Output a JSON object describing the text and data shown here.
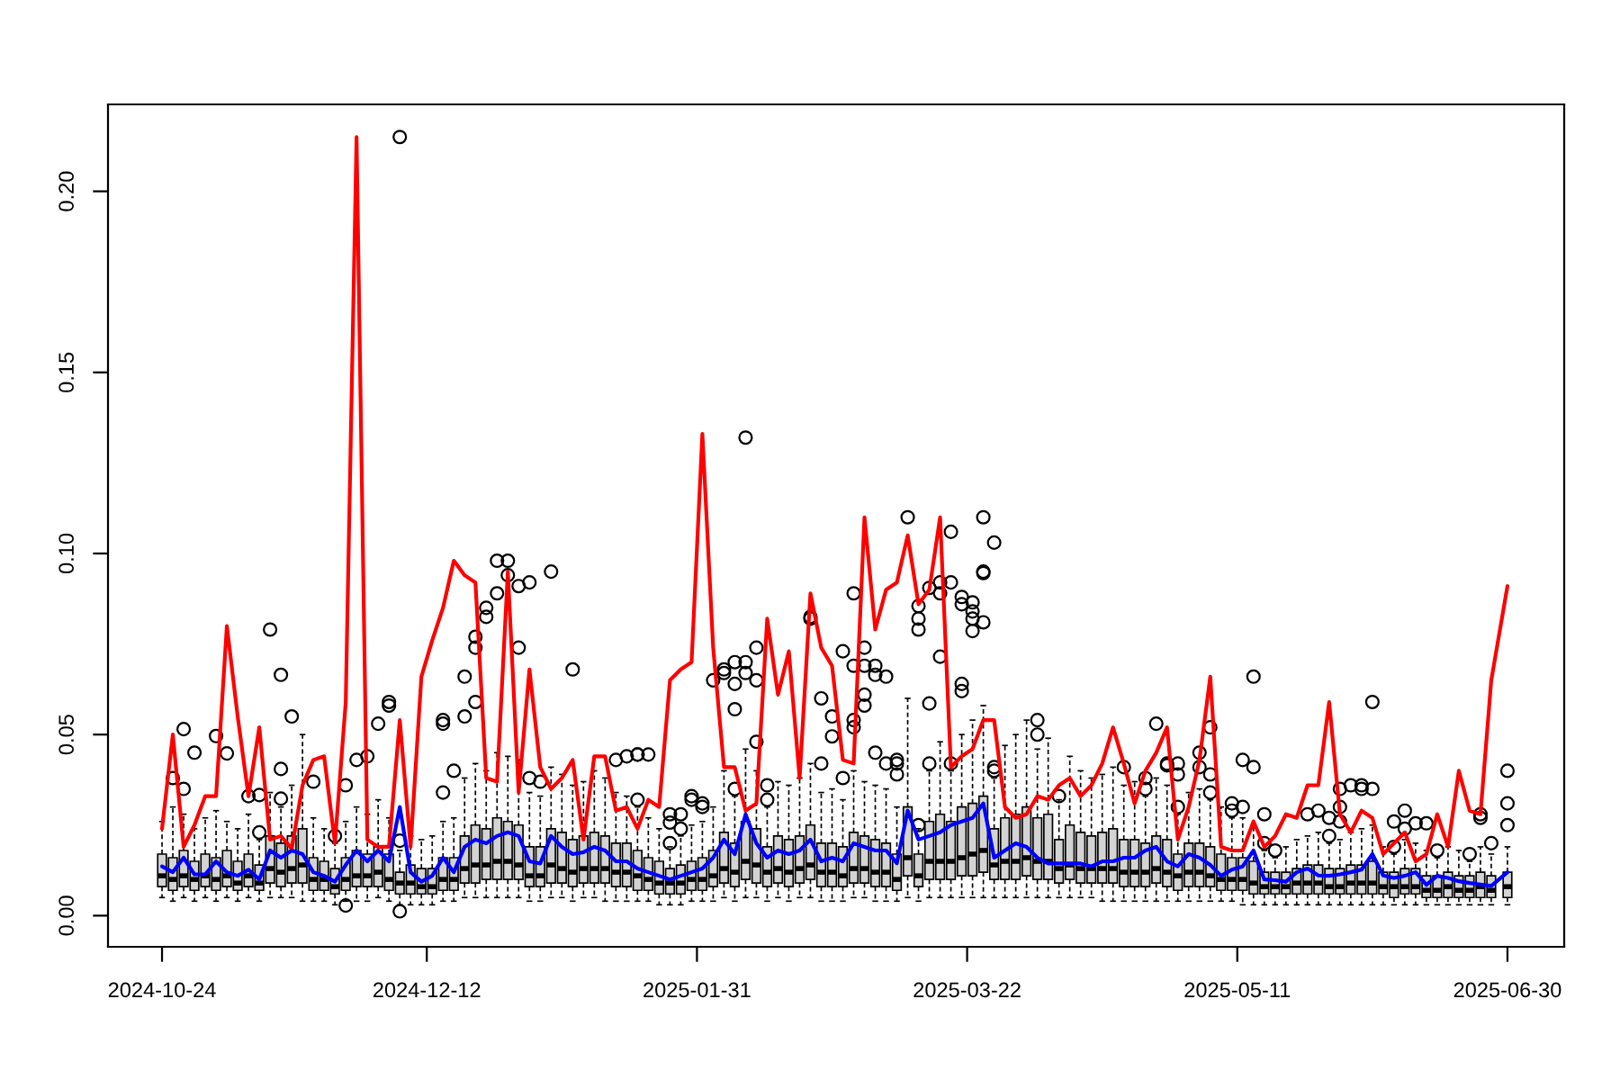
{
  "chart_data": {
    "type": "box",
    "color": "#d3d3d3",
    "x": [
      "2024-10-24",
      "2024-10-26",
      "2024-10-28",
      "2024-10-30",
      "2024-11-01",
      "2024-11-03",
      "2024-11-05",
      "2024-11-07",
      "2024-11-09",
      "2024-11-11",
      "2024-11-13",
      "2024-11-15",
      "2024-11-17",
      "2024-11-19",
      "2024-11-21",
      "2024-11-23",
      "2024-11-25",
      "2024-11-27",
      "2024-11-29",
      "2024-12-01",
      "2024-12-03",
      "2024-12-05",
      "2024-12-07",
      "2024-12-09",
      "2024-12-11",
      "2024-12-13",
      "2024-12-15",
      "2024-12-17",
      "2024-12-19",
      "2024-12-21",
      "2024-12-23",
      "2024-12-25",
      "2024-12-27",
      "2024-12-29",
      "2024-12-31",
      "2025-01-02",
      "2025-01-04",
      "2025-01-06",
      "2025-01-08",
      "2025-01-10",
      "2025-01-12",
      "2025-01-14",
      "2025-01-16",
      "2025-01-18",
      "2025-01-20",
      "2025-01-22",
      "2025-01-24",
      "2025-01-26",
      "2025-01-28",
      "2025-01-30",
      "2025-02-01",
      "2025-02-03",
      "2025-02-05",
      "2025-02-07",
      "2025-02-09",
      "2025-02-11",
      "2025-02-13",
      "2025-02-15",
      "2025-02-17",
      "2025-02-19",
      "2025-02-21",
      "2025-02-23",
      "2025-02-25",
      "2025-02-27",
      "2025-03-01",
      "2025-03-03",
      "2025-03-05",
      "2025-03-07",
      "2025-03-09",
      "2025-03-11",
      "2025-03-13",
      "2025-03-15",
      "2025-03-17",
      "2025-03-19",
      "2025-03-21",
      "2025-03-23",
      "2025-03-25",
      "2025-03-27",
      "2025-03-29",
      "2025-03-31",
      "2025-04-02",
      "2025-04-04",
      "2025-04-06",
      "2025-04-08",
      "2025-04-10",
      "2025-04-12",
      "2025-04-14",
      "2025-04-16",
      "2025-04-18",
      "2025-04-20",
      "2025-04-22",
      "2025-04-24",
      "2025-04-26",
      "2025-04-28",
      "2025-04-30",
      "2025-05-02",
      "2025-05-04",
      "2025-05-06",
      "2025-05-08",
      "2025-05-10",
      "2025-05-12",
      "2025-05-14",
      "2025-05-16",
      "2025-05-18",
      "2025-05-20",
      "2025-05-22",
      "2025-05-24",
      "2025-05-26",
      "2025-05-28",
      "2025-05-30",
      "2025-06-01",
      "2025-06-03",
      "2025-06-05",
      "2025-06-07",
      "2025-06-09",
      "2025-06-11",
      "2025-06-13",
      "2025-06-15",
      "2025-06-17",
      "2025-06-19",
      "2025-06-21",
      "2025-06-23",
      "2025-06-25",
      "2025-06-27",
      "2025-06-30"
    ],
    "boxes": [
      {
        "low": 0.005,
        "q1": 0.008,
        "median": 0.011,
        "q3": 0.017,
        "high": 0.026
      },
      {
        "low": 0.004,
        "q1": 0.007,
        "median": 0.01,
        "q3": 0.016,
        "high": 0.03,
        "outliers": [
          0.038
        ]
      },
      {
        "low": 0.005,
        "q1": 0.008,
        "median": 0.011,
        "q3": 0.018,
        "high": 0.028,
        "outliers": [
          0.035,
          0.0515
        ]
      },
      {
        "low": 0.004,
        "q1": 0.007,
        "median": 0.01,
        "q3": 0.015,
        "high": 0.024,
        "outliers": [
          0.045
        ]
      },
      {
        "low": 0.005,
        "q1": 0.008,
        "median": 0.011,
        "q3": 0.017,
        "high": 0.027
      },
      {
        "low": 0.004,
        "q1": 0.007,
        "median": 0.01,
        "q3": 0.016,
        "high": 0.029,
        "outliers": [
          0.0496
        ]
      },
      {
        "low": 0.005,
        "q1": 0.008,
        "median": 0.011,
        "q3": 0.018,
        "high": 0.026,
        "outliers": [
          0.0448
        ]
      },
      {
        "low": 0.004,
        "q1": 0.007,
        "median": 0.009,
        "q3": 0.015,
        "high": 0.024
      },
      {
        "low": 0.005,
        "q1": 0.008,
        "median": 0.011,
        "q3": 0.017,
        "high": 0.028,
        "outliers": [
          0.033
        ]
      },
      {
        "low": 0.004,
        "q1": 0.007,
        "median": 0.009,
        "q3": 0.014,
        "high": 0.021,
        "outliers": [
          0.023,
          0.0333
        ]
      },
      {
        "low": 0.005,
        "q1": 0.009,
        "median": 0.013,
        "q3": 0.022,
        "high": 0.034,
        "outliers": [
          0.079
        ]
      },
      {
        "low": 0.005,
        "q1": 0.008,
        "median": 0.012,
        "q3": 0.02,
        "high": 0.03,
        "outliers": [
          0.0665,
          0.0405,
          0.0323
        ]
      },
      {
        "low": 0.005,
        "q1": 0.009,
        "median": 0.013,
        "q3": 0.022,
        "high": 0.036,
        "outliers": [
          0.055
        ]
      },
      {
        "low": 0.004,
        "q1": 0.009,
        "median": 0.014,
        "q3": 0.024,
        "high": 0.05
      },
      {
        "low": 0.004,
        "q1": 0.007,
        "median": 0.01,
        "q3": 0.016,
        "high": 0.027,
        "outliers": [
          0.037
        ]
      },
      {
        "low": 0.004,
        "q1": 0.007,
        "median": 0.01,
        "q3": 0.015,
        "high": 0.024
      },
      {
        "low": 0.003,
        "q1": 0.006,
        "median": 0.008,
        "q3": 0.013,
        "high": 0.02,
        "outliers": [
          0.022
        ]
      },
      {
        "low": 0.004,
        "q1": 0.007,
        "median": 0.01,
        "q3": 0.016,
        "high": 0.026,
        "outliers": [
          0.036,
          0.0028
        ]
      },
      {
        "low": 0.004,
        "q1": 0.008,
        "median": 0.011,
        "q3": 0.018,
        "high": 0.03,
        "outliers": [
          0.043
        ]
      },
      {
        "low": 0.004,
        "q1": 0.008,
        "median": 0.011,
        "q3": 0.017,
        "high": 0.028,
        "outliers": [
          0.044
        ]
      },
      {
        "low": 0.005,
        "q1": 0.008,
        "median": 0.012,
        "q3": 0.019,
        "high": 0.032,
        "outliers": [
          0.053
        ]
      },
      {
        "low": 0.004,
        "q1": 0.007,
        "median": 0.01,
        "q3": 0.017,
        "high": 0.027,
        "outliers": [
          0.059,
          0.058
        ]
      },
      {
        "low": 0.003,
        "q1": 0.006,
        "median": 0.009,
        "q3": 0.012,
        "high": 0.018,
        "outliers": [
          0.215,
          0.0207,
          0.0012
        ]
      },
      {
        "low": 0.003,
        "q1": 0.006,
        "median": 0.009,
        "q3": 0.014,
        "high": 0.022
      },
      {
        "low": 0.003,
        "q1": 0.006,
        "median": 0.008,
        "q3": 0.013,
        "high": 0.021
      },
      {
        "low": 0.003,
        "q1": 0.006,
        "median": 0.008,
        "q3": 0.013,
        "high": 0.022
      },
      {
        "low": 0.004,
        "q1": 0.007,
        "median": 0.01,
        "q3": 0.016,
        "high": 0.026,
        "outliers": [
          0.054,
          0.053,
          0.034
        ]
      },
      {
        "low": 0.004,
        "q1": 0.007,
        "median": 0.01,
        "q3": 0.016,
        "high": 0.027,
        "outliers": [
          0.04
        ]
      },
      {
        "low": 0.005,
        "q1": 0.009,
        "median": 0.013,
        "q3": 0.022,
        "high": 0.038,
        "outliers": [
          0.066,
          0.055
        ]
      },
      {
        "low": 0.005,
        "q1": 0.009,
        "median": 0.014,
        "q3": 0.025,
        "high": 0.042,
        "outliers": [
          0.059,
          0.074,
          0.077
        ]
      },
      {
        "low": 0.005,
        "q1": 0.01,
        "median": 0.014,
        "q3": 0.024,
        "high": 0.04,
        "outliers": [
          0.0825,
          0.085
        ]
      },
      {
        "low": 0.005,
        "q1": 0.01,
        "median": 0.015,
        "q3": 0.027,
        "high": 0.045,
        "outliers": [
          0.089,
          0.098
        ]
      },
      {
        "low": 0.005,
        "q1": 0.01,
        "median": 0.015,
        "q3": 0.026,
        "high": 0.044,
        "outliers": [
          0.098,
          0.094
        ]
      },
      {
        "low": 0.005,
        "q1": 0.01,
        "median": 0.014,
        "q3": 0.025,
        "high": 0.043,
        "outliers": [
          0.091,
          0.074
        ]
      },
      {
        "low": 0.004,
        "q1": 0.008,
        "median": 0.011,
        "q3": 0.019,
        "high": 0.034,
        "outliers": [
          0.092,
          0.038
        ]
      },
      {
        "low": 0.004,
        "q1": 0.008,
        "median": 0.011,
        "q3": 0.019,
        "high": 0.033,
        "outliers": [
          0.037
        ]
      },
      {
        "low": 0.005,
        "q1": 0.009,
        "median": 0.014,
        "q3": 0.024,
        "high": 0.041,
        "outliers": [
          0.095
        ]
      },
      {
        "low": 0.005,
        "q1": 0.009,
        "median": 0.013,
        "q3": 0.023,
        "high": 0.039
      },
      {
        "low": 0.004,
        "q1": 0.008,
        "median": 0.012,
        "q3": 0.021,
        "high": 0.036,
        "outliers": [
          0.068
        ]
      },
      {
        "low": 0.005,
        "q1": 0.009,
        "median": 0.013,
        "q3": 0.022,
        "high": 0.037
      },
      {
        "low": 0.005,
        "q1": 0.009,
        "median": 0.013,
        "q3": 0.023,
        "high": 0.04
      },
      {
        "low": 0.004,
        "q1": 0.009,
        "median": 0.013,
        "q3": 0.022,
        "high": 0.038
      },
      {
        "low": 0.004,
        "q1": 0.008,
        "median": 0.012,
        "q3": 0.02,
        "high": 0.034,
        "outliers": [
          0.043
        ]
      },
      {
        "low": 0.004,
        "q1": 0.008,
        "median": 0.012,
        "q3": 0.02,
        "high": 0.033,
        "outliers": [
          0.044
        ]
      },
      {
        "low": 0.004,
        "q1": 0.007,
        "median": 0.011,
        "q3": 0.018,
        "high": 0.03,
        "outliers": [
          0.032,
          0.0445,
          0.0445
        ]
      },
      {
        "low": 0.004,
        "q1": 0.007,
        "median": 0.01,
        "q3": 0.016,
        "high": 0.027,
        "outliers": [
          0.0445
        ]
      },
      {
        "low": 0.003,
        "q1": 0.006,
        "median": 0.009,
        "q3": 0.015,
        "high": 0.024
      },
      {
        "low": 0.003,
        "q1": 0.006,
        "median": 0.009,
        "q3": 0.013,
        "high": 0.019,
        "outliers": [
          0.0257,
          0.02,
          0.028
        ]
      },
      {
        "low": 0.003,
        "q1": 0.006,
        "median": 0.009,
        "q3": 0.014,
        "high": 0.022,
        "outliers": [
          0.024,
          0.028
        ]
      },
      {
        "low": 0.004,
        "q1": 0.007,
        "median": 0.01,
        "q3": 0.015,
        "high": 0.025,
        "outliers": [
          0.033,
          0.032
        ]
      },
      {
        "low": 0.004,
        "q1": 0.007,
        "median": 0.01,
        "q3": 0.016,
        "high": 0.026,
        "outliers": [
          0.031,
          0.03
        ]
      },
      {
        "low": 0.004,
        "q1": 0.008,
        "median": 0.011,
        "q3": 0.018,
        "high": 0.03,
        "outliers": [
          0.065
        ]
      },
      {
        "low": 0.005,
        "q1": 0.009,
        "median": 0.013,
        "q3": 0.023,
        "high": 0.04,
        "outliers": [
          0.068,
          0.067
        ]
      },
      {
        "low": 0.004,
        "q1": 0.008,
        "median": 0.012,
        "q3": 0.02,
        "high": 0.033,
        "outliers": [
          0.057,
          0.035,
          0.064,
          0.07
        ]
      },
      {
        "low": 0.005,
        "q1": 0.01,
        "median": 0.015,
        "q3": 0.026,
        "high": 0.046,
        "outliers": [
          0.07,
          0.132,
          0.067
        ]
      },
      {
        "low": 0.005,
        "q1": 0.009,
        "median": 0.014,
        "q3": 0.024,
        "high": 0.04,
        "outliers": [
          0.065,
          0.074,
          0.048
        ]
      },
      {
        "low": 0.004,
        "q1": 0.008,
        "median": 0.012,
        "q3": 0.019,
        "high": 0.03,
        "outliers": [
          0.036,
          0.032
        ]
      },
      {
        "low": 0.005,
        "q1": 0.009,
        "median": 0.013,
        "q3": 0.022,
        "high": 0.037
      },
      {
        "low": 0.004,
        "q1": 0.008,
        "median": 0.012,
        "q3": 0.021,
        "high": 0.036
      },
      {
        "low": 0.005,
        "q1": 0.009,
        "median": 0.013,
        "q3": 0.022,
        "high": 0.038
      },
      {
        "low": 0.005,
        "q1": 0.01,
        "median": 0.014,
        "q3": 0.025,
        "high": 0.042,
        "outliers": [
          0.082,
          0.0825
        ]
      },
      {
        "low": 0.004,
        "q1": 0.008,
        "median": 0.012,
        "q3": 0.02,
        "high": 0.034,
        "outliers": [
          0.06,
          0.042
        ]
      },
      {
        "low": 0.004,
        "q1": 0.008,
        "median": 0.012,
        "q3": 0.02,
        "high": 0.035,
        "outliers": [
          0.0495,
          0.055
        ]
      },
      {
        "low": 0.004,
        "q1": 0.008,
        "median": 0.011,
        "q3": 0.019,
        "high": 0.032,
        "outliers": [
          0.073,
          0.038
        ]
      },
      {
        "low": 0.005,
        "q1": 0.009,
        "median": 0.013,
        "q3": 0.023,
        "high": 0.04,
        "outliers": [
          0.054,
          0.069,
          0.052,
          0.089
        ]
      },
      {
        "low": 0.005,
        "q1": 0.009,
        "median": 0.013,
        "q3": 0.022,
        "high": 0.037,
        "outliers": [
          0.058,
          0.069,
          0.061,
          0.074
        ]
      },
      {
        "low": 0.004,
        "q1": 0.008,
        "median": 0.012,
        "q3": 0.021,
        "high": 0.036,
        "outliers": [
          0.0665,
          0.045,
          0.069
        ]
      },
      {
        "low": 0.004,
        "q1": 0.008,
        "median": 0.012,
        "q3": 0.02,
        "high": 0.035,
        "outliers": [
          0.066,
          0.042
        ]
      },
      {
        "low": 0.004,
        "q1": 0.007,
        "median": 0.01,
        "q3": 0.017,
        "high": 0.03,
        "outliers": [
          0.043,
          0.042,
          0.039
        ]
      },
      {
        "low": 0.005,
        "q1": 0.011,
        "median": 0.016,
        "q3": 0.03,
        "high": 0.06,
        "outliers": [
          0.11
        ]
      },
      {
        "low": 0.004,
        "q1": 0.008,
        "median": 0.011,
        "q3": 0.017,
        "high": 0.024,
        "outliers": [
          0.0855,
          0.082,
          0.079,
          0.025
        ]
      },
      {
        "low": 0.005,
        "q1": 0.01,
        "median": 0.015,
        "q3": 0.026,
        "high": 0.04,
        "outliers": [
          0.0586,
          0.042,
          0.0905
        ]
      },
      {
        "low": 0.005,
        "q1": 0.01,
        "median": 0.015,
        "q3": 0.028,
        "high": 0.048,
        "outliers": [
          0.089,
          0.092,
          0.0715
        ]
      },
      {
        "low": 0.005,
        "q1": 0.01,
        "median": 0.015,
        "q3": 0.026,
        "high": 0.04,
        "outliers": [
          0.092,
          0.042,
          0.106
        ]
      },
      {
        "low": 0.005,
        "q1": 0.011,
        "median": 0.016,
        "q3": 0.03,
        "high": 0.05,
        "outliers": [
          0.088,
          0.062,
          0.064,
          0.086
        ]
      },
      {
        "low": 0.005,
        "q1": 0.011,
        "median": 0.017,
        "q3": 0.031,
        "high": 0.054,
        "outliers": [
          0.084,
          0.082,
          0.0865,
          0.0786
        ]
      },
      {
        "low": 0.005,
        "q1": 0.012,
        "median": 0.018,
        "q3": 0.033,
        "high": 0.058,
        "outliers": [
          0.081,
          0.095,
          0.0946,
          0.11
        ]
      },
      {
        "low": 0.005,
        "q1": 0.01,
        "median": 0.014,
        "q3": 0.024,
        "high": 0.038,
        "outliers": [
          0.103,
          0.04,
          0.041
        ]
      },
      {
        "low": 0.005,
        "q1": 0.01,
        "median": 0.015,
        "q3": 0.027,
        "high": 0.047
      },
      {
        "low": 0.005,
        "q1": 0.01,
        "median": 0.015,
        "q3": 0.028,
        "high": 0.05
      },
      {
        "low": 0.005,
        "q1": 0.011,
        "median": 0.016,
        "q3": 0.03,
        "high": 0.054
      },
      {
        "low": 0.005,
        "q1": 0.01,
        "median": 0.015,
        "q3": 0.027,
        "high": 0.046,
        "outliers": [
          0.054,
          0.05
        ]
      },
      {
        "low": 0.005,
        "q1": 0.01,
        "median": 0.015,
        "q3": 0.028,
        "high": 0.049
      },
      {
        "low": 0.005,
        "q1": 0.009,
        "median": 0.013,
        "q3": 0.021,
        "high": 0.032,
        "outliers": [
          0.033
        ]
      },
      {
        "low": 0.005,
        "q1": 0.01,
        "median": 0.014,
        "q3": 0.025,
        "high": 0.044
      },
      {
        "low": 0.005,
        "q1": 0.009,
        "median": 0.013,
        "q3": 0.023,
        "high": 0.04
      },
      {
        "low": 0.005,
        "q1": 0.009,
        "median": 0.013,
        "q3": 0.022,
        "high": 0.038
      },
      {
        "low": 0.004,
        "q1": 0.009,
        "median": 0.013,
        "q3": 0.023,
        "high": 0.039
      },
      {
        "low": 0.004,
        "q1": 0.009,
        "median": 0.013,
        "q3": 0.024,
        "high": 0.041
      },
      {
        "low": 0.004,
        "q1": 0.008,
        "median": 0.012,
        "q3": 0.021,
        "high": 0.036,
        "outliers": [
          0.041
        ]
      },
      {
        "low": 0.004,
        "q1": 0.008,
        "median": 0.012,
        "q3": 0.021,
        "high": 0.037
      },
      {
        "low": 0.004,
        "q1": 0.008,
        "median": 0.012,
        "q3": 0.02,
        "high": 0.033,
        "outliers": [
          0.038,
          0.035
        ]
      },
      {
        "low": 0.004,
        "q1": 0.009,
        "median": 0.013,
        "q3": 0.022,
        "high": 0.038,
        "outliers": [
          0.053
        ]
      },
      {
        "low": 0.004,
        "q1": 0.008,
        "median": 0.012,
        "q3": 0.021,
        "high": 0.036,
        "outliers": [
          0.042,
          0.0415
        ]
      },
      {
        "low": 0.004,
        "q1": 0.007,
        "median": 0.011,
        "q3": 0.017,
        "high": 0.028,
        "outliers": [
          0.03,
          0.042,
          0.039
        ]
      },
      {
        "low": 0.004,
        "q1": 0.008,
        "median": 0.012,
        "q3": 0.02,
        "high": 0.034
      },
      {
        "low": 0.004,
        "q1": 0.008,
        "median": 0.012,
        "q3": 0.02,
        "high": 0.035,
        "outliers": [
          0.045,
          0.041
        ]
      },
      {
        "low": 0.004,
        "q1": 0.008,
        "median": 0.011,
        "q3": 0.019,
        "high": 0.032,
        "outliers": [
          0.052,
          0.034,
          0.039
        ]
      },
      {
        "low": 0.004,
        "q1": 0.007,
        "median": 0.01,
        "q3": 0.017,
        "high": 0.03
      },
      {
        "low": 0.004,
        "q1": 0.007,
        "median": 0.01,
        "q3": 0.016,
        "high": 0.027,
        "outliers": [
          0.029,
          0.031
        ]
      },
      {
        "low": 0.003,
        "q1": 0.007,
        "median": 0.01,
        "q3": 0.016,
        "high": 0.027,
        "outliers": [
          0.03,
          0.043
        ]
      },
      {
        "low": 0.003,
        "q1": 0.006,
        "median": 0.009,
        "q3": 0.015,
        "high": 0.025,
        "outliers": [
          0.066,
          0.041
        ]
      },
      {
        "low": 0.003,
        "q1": 0.006,
        "median": 0.008,
        "q3": 0.012,
        "high": 0.018,
        "outliers": [
          0.028,
          0.02
        ]
      },
      {
        "low": 0.003,
        "q1": 0.006,
        "median": 0.008,
        "q3": 0.012,
        "high": 0.016,
        "outliers": [
          0.018
        ]
      },
      {
        "low": 0.003,
        "q1": 0.006,
        "median": 0.008,
        "q3": 0.012,
        "high": 0.019
      },
      {
        "low": 0.003,
        "q1": 0.006,
        "median": 0.009,
        "q3": 0.013,
        "high": 0.021
      },
      {
        "low": 0.003,
        "q1": 0.006,
        "median": 0.009,
        "q3": 0.014,
        "high": 0.022,
        "outliers": [
          0.028
        ]
      },
      {
        "low": 0.003,
        "q1": 0.006,
        "median": 0.009,
        "q3": 0.014,
        "high": 0.023,
        "outliers": [
          0.029
        ]
      },
      {
        "low": 0.003,
        "q1": 0.006,
        "median": 0.008,
        "q3": 0.013,
        "high": 0.02,
        "outliers": [
          0.027,
          0.022
        ]
      },
      {
        "low": 0.003,
        "q1": 0.006,
        "median": 0.008,
        "q3": 0.013,
        "high": 0.021,
        "outliers": [
          0.03,
          0.035,
          0.026
        ]
      },
      {
        "low": 0.003,
        "q1": 0.006,
        "median": 0.009,
        "q3": 0.014,
        "high": 0.023,
        "outliers": [
          0.036
        ]
      },
      {
        "low": 0.003,
        "q1": 0.006,
        "median": 0.009,
        "q3": 0.014,
        "high": 0.024,
        "outliers": [
          0.036,
          0.035
        ]
      },
      {
        "low": 0.003,
        "q1": 0.006,
        "median": 0.009,
        "q3": 0.015,
        "high": 0.025,
        "outliers": [
          0.059,
          0.035
        ]
      },
      {
        "low": 0.003,
        "q1": 0.006,
        "median": 0.008,
        "q3": 0.012,
        "high": 0.019
      },
      {
        "low": 0.003,
        "q1": 0.005,
        "median": 0.008,
        "q3": 0.012,
        "high": 0.017,
        "outliers": [
          0.026,
          0.019
        ]
      },
      {
        "low": 0.003,
        "q1": 0.006,
        "median": 0.008,
        "q3": 0.013,
        "high": 0.021,
        "outliers": [
          0.024,
          0.029
        ]
      },
      {
        "low": 0.003,
        "q1": 0.006,
        "median": 0.008,
        "q3": 0.013,
        "high": 0.02,
        "outliers": [
          0.0255
        ]
      },
      {
        "low": 0.003,
        "q1": 0.005,
        "median": 0.007,
        "q3": 0.011,
        "high": 0.018,
        "outliers": [
          0.0255
        ]
      },
      {
        "low": 0.003,
        "q1": 0.005,
        "median": 0.007,
        "q3": 0.011,
        "high": 0.016,
        "outliers": [
          0.018
        ]
      },
      {
        "low": 0.003,
        "q1": 0.005,
        "median": 0.008,
        "q3": 0.012,
        "high": 0.019
      },
      {
        "low": 0.003,
        "q1": 0.005,
        "median": 0.007,
        "q3": 0.011,
        "high": 0.018
      },
      {
        "low": 0.003,
        "q1": 0.005,
        "median": 0.007,
        "q3": 0.011,
        "high": 0.015,
        "outliers": [
          0.017
        ]
      },
      {
        "low": 0.003,
        "q1": 0.005,
        "median": 0.008,
        "q3": 0.012,
        "high": 0.019,
        "outliers": [
          0.028,
          0.027
        ]
      },
      {
        "low": 0.003,
        "q1": 0.005,
        "median": 0.007,
        "q3": 0.011,
        "high": 0.017,
        "outliers": [
          0.02
        ]
      },
      {
        "low": 0.003,
        "q1": 0.005,
        "median": 0.008,
        "q3": 0.012,
        "high": 0.019,
        "outliers": [
          0.04,
          0.031,
          0.025
        ]
      }
    ],
    "series": [
      {
        "type": "line",
        "color": "#ff0000",
        "values": [
          0.024,
          0.05,
          0.019,
          0.025,
          0.033,
          0.033,
          0.08,
          0.055,
          0.033,
          0.052,
          0.021,
          0.022,
          0.0185,
          0.036,
          0.043,
          0.044,
          0.02,
          0.059,
          0.215,
          0.021,
          0.019,
          0.019,
          0.054,
          0.019,
          0.066,
          0.076,
          0.085,
          0.098,
          0.094,
          0.092,
          0.038,
          0.037,
          0.095,
          0.034,
          0.068,
          0.041,
          0.035,
          0.038,
          0.043,
          0.021,
          0.044,
          0.044,
          0.029,
          0.03,
          0.024,
          0.032,
          0.03,
          0.065,
          0.068,
          0.07,
          0.133,
          0.074,
          0.041,
          0.041,
          0.029,
          0.031,
          0.082,
          0.061,
          0.073,
          0.038,
          0.089,
          0.074,
          0.069,
          0.043,
          0.042,
          0.11,
          0.079,
          0.09,
          0.092,
          0.105,
          0.086,
          0.09,
          0.11,
          0.041,
          0.044,
          0.046,
          0.054,
          0.054,
          0.03,
          0.027,
          0.028,
          0.033,
          0.032,
          0.036,
          0.038,
          0.033,
          0.036,
          0.042,
          0.052,
          0.042,
          0.031,
          0.04,
          0.045,
          0.052,
          0.021,
          0.03,
          0.043,
          0.066,
          0.019,
          0.018,
          0.018,
          0.026,
          0.019,
          0.022,
          0.028,
          0.027,
          0.036,
          0.036,
          0.059,
          0.028,
          0.023,
          0.029,
          0.027,
          0.017,
          0.02,
          0.023,
          0.015,
          0.017,
          0.028,
          0.019,
          0.04,
          0.029,
          0.028,
          0.065,
          0.091
        ]
      },
      {
        "type": "line",
        "color": "#0000ff",
        "values": [
          0.0136,
          0.012,
          0.016,
          0.0114,
          0.0114,
          0.015,
          0.012,
          0.011,
          0.0127,
          0.01,
          0.018,
          0.016,
          0.018,
          0.017,
          0.012,
          0.011,
          0.0094,
          0.014,
          0.018,
          0.015,
          0.018,
          0.015,
          0.03,
          0.012,
          0.0094,
          0.011,
          0.016,
          0.012,
          0.019,
          0.021,
          0.02,
          0.022,
          0.023,
          0.022,
          0.015,
          0.0144,
          0.022,
          0.019,
          0.017,
          0.0175,
          0.019,
          0.018,
          0.015,
          0.015,
          0.013,
          0.012,
          0.011,
          0.01,
          0.011,
          0.012,
          0.013,
          0.016,
          0.021,
          0.017,
          0.028,
          0.02,
          0.016,
          0.018,
          0.017,
          0.018,
          0.021,
          0.015,
          0.016,
          0.015,
          0.02,
          0.019,
          0.018,
          0.018,
          0.0145,
          0.029,
          0.021,
          0.022,
          0.023,
          0.025,
          0.026,
          0.027,
          0.031,
          0.016,
          0.018,
          0.02,
          0.019,
          0.016,
          0.0144,
          0.0144,
          0.0144,
          0.0144,
          0.0136,
          0.015,
          0.015,
          0.016,
          0.016,
          0.018,
          0.019,
          0.015,
          0.0136,
          0.017,
          0.016,
          0.014,
          0.011,
          0.0127,
          0.0136,
          0.018,
          0.01,
          0.0098,
          0.0094,
          0.012,
          0.013,
          0.0111,
          0.011,
          0.0114,
          0.012,
          0.0127,
          0.017,
          0.0111,
          0.0104,
          0.011,
          0.012,
          0.0085,
          0.011,
          0.0104,
          0.0095,
          0.009,
          0.0086,
          0.0082,
          0.012
        ]
      }
    ],
    "xlim": [
      "2024-10-14",
      "2025-07-10T12:00"
    ],
    "xticks": [
      {
        "value": "2024-10-24",
        "label": "2024-10-24"
      },
      {
        "value": "2024-12-12",
        "label": "2024-12-12"
      },
      {
        "value": "2025-01-31",
        "label": "2025-01-31"
      },
      {
        "value": "2025-03-22",
        "label": "2025-03-22"
      },
      {
        "value": "2025-05-11",
        "label": "2025-05-11"
      },
      {
        "value": "2025-06-30",
        "label": "2025-06-30"
      }
    ],
    "ylim": [
      -0.0086,
      0.224
    ],
    "yticks": [
      {
        "value": 0,
        "label": "0.00"
      },
      0.05,
      {
        "value": 0.1,
        "label": "0.10"
      },
      0.15,
      {
        "value": 0.2,
        "label": "0.20"
      }
    ],
    "grid": false
  }
}
